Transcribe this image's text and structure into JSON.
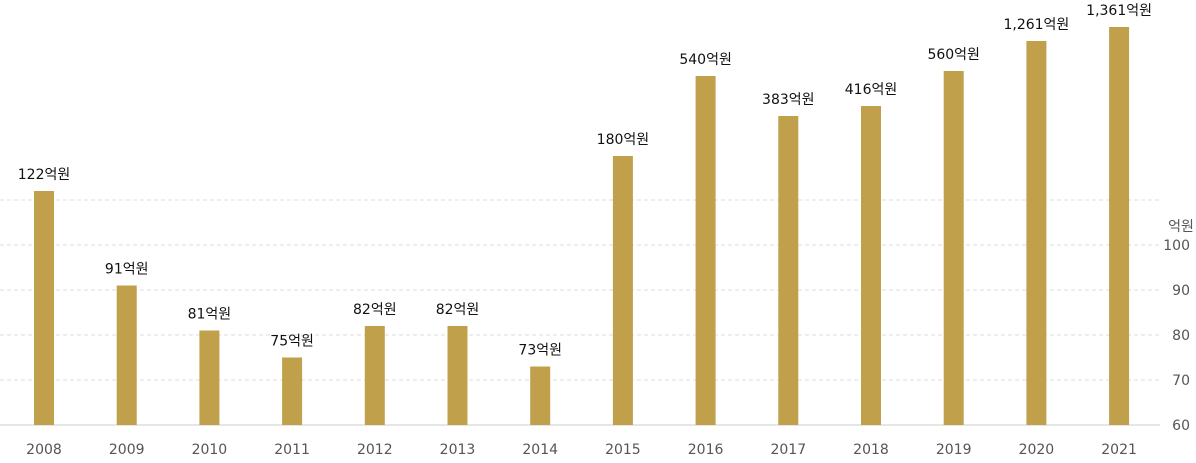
{
  "chart_data": {
    "type": "bar",
    "categories": [
      "2008",
      "2009",
      "2010",
      "2011",
      "2012",
      "2013",
      "2014",
      "2015",
      "2016",
      "2017",
      "2018",
      "2019",
      "2020",
      "2021"
    ],
    "values": [
      122,
      91,
      81,
      75,
      82,
      82,
      73,
      180,
      540,
      383,
      416,
      560,
      1261,
      1361
    ],
    "data_labels": [
      "122억원",
      "91억원",
      "81억원",
      "75억원",
      "82억원",
      "82억원",
      "73억원",
      "180억원",
      "540억원",
      "383억원",
      "416억원",
      "560억원",
      "1,261억원",
      "1,361억원"
    ],
    "y_axis": {
      "unit_label": "억원",
      "ticks": [
        60,
        70,
        80,
        90,
        100
      ],
      "position": "right"
    },
    "bar_color": "#c0a04a",
    "grid": true,
    "title": "",
    "xlabel": "",
    "ylabel": ""
  }
}
